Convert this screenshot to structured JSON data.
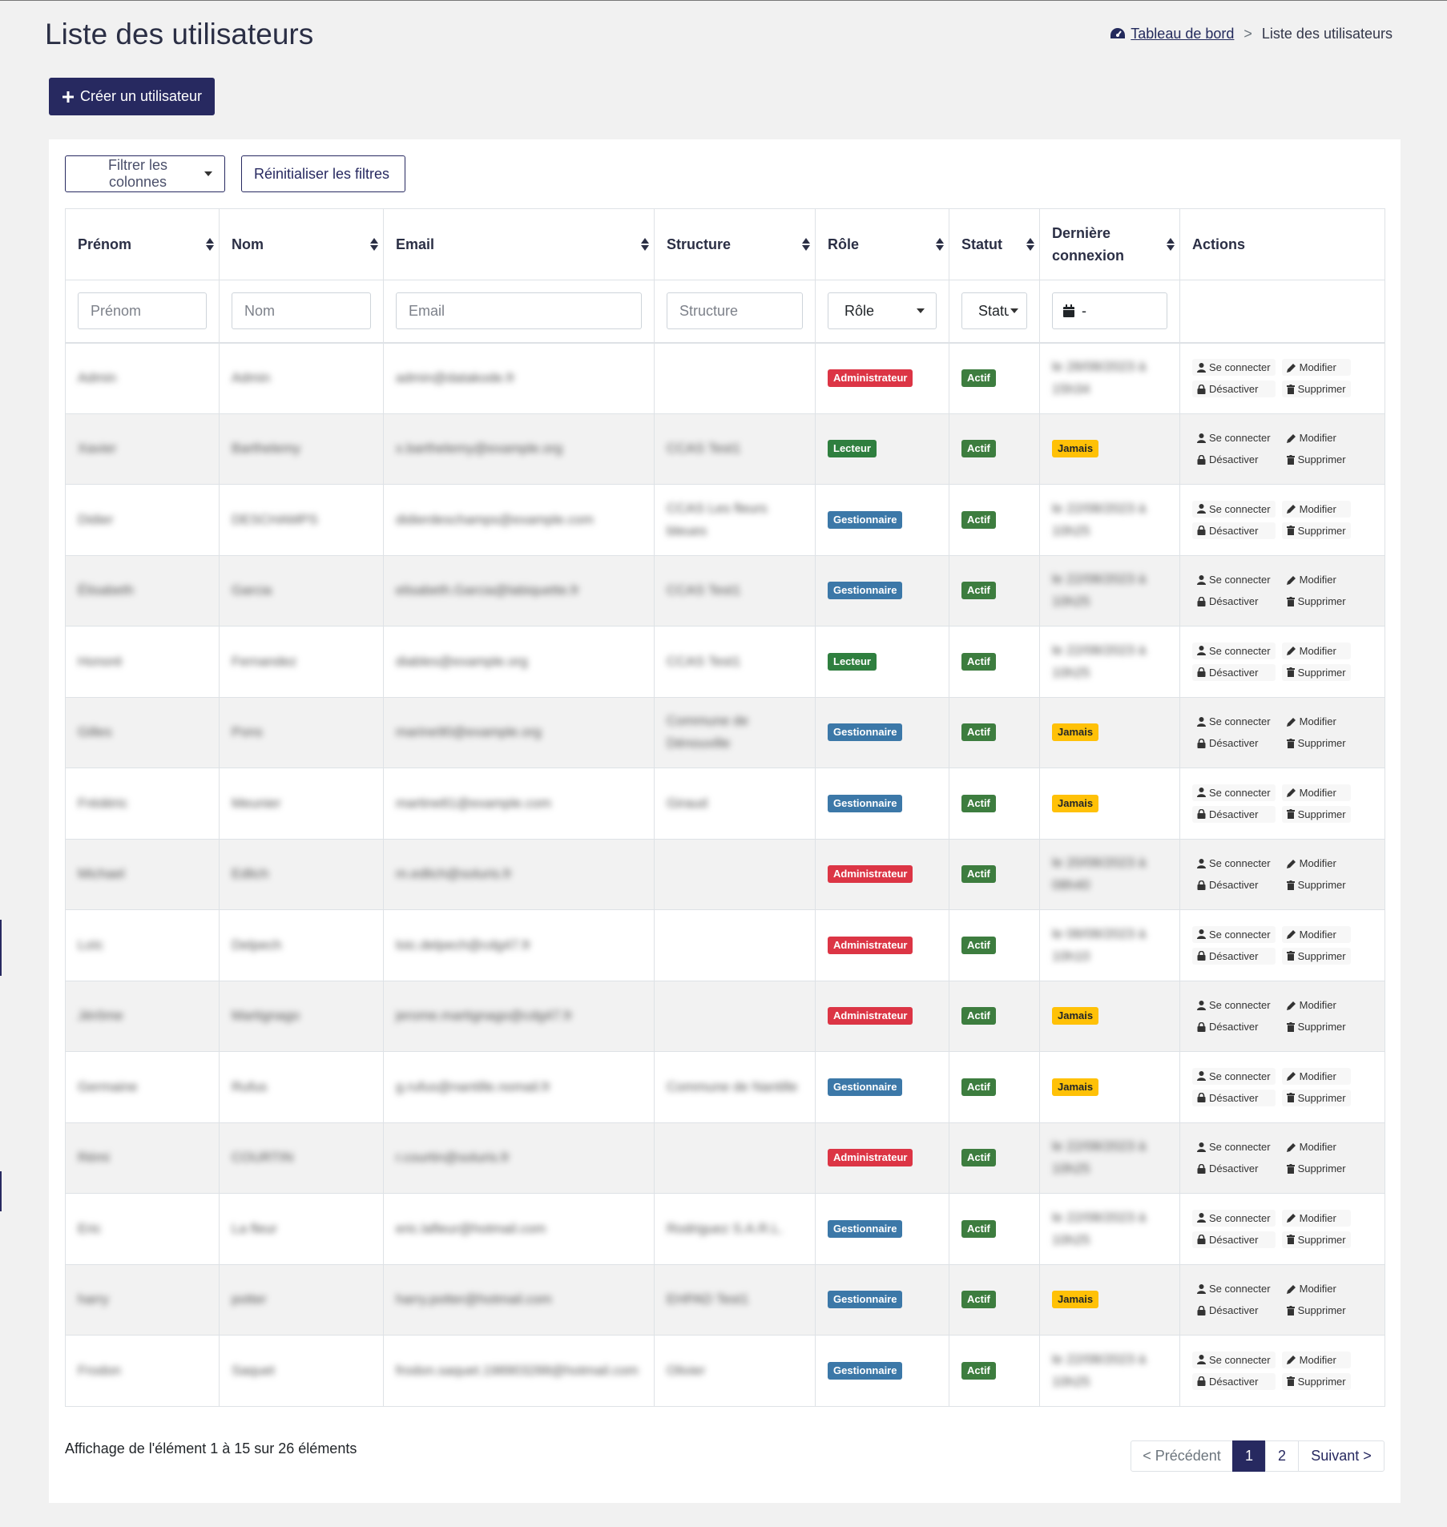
{
  "header": {
    "title": "Liste des utilisateurs",
    "breadcrumb": {
      "home": "Tableau de bord",
      "separator": ">",
      "current": "Liste des utilisateurs"
    },
    "create_button": "Créer un utilisateur"
  },
  "toolbar": {
    "filter_columns": "Filtrer les colonnes",
    "reset_filters": "Réinitialiser les filtres"
  },
  "table": {
    "headers": {
      "prenom": "Prénom",
      "nom": "Nom",
      "email": "Email",
      "structure": "Structure",
      "role": "Rôle",
      "statut": "Statut",
      "derniere_connexion": "Dernière connexion",
      "actions": "Actions"
    },
    "filters": {
      "prenom_placeholder": "Prénom",
      "nom_placeholder": "Nom",
      "email_placeholder": "Email",
      "structure_placeholder": "Structure",
      "role_select": "Rôle",
      "statut_select": "Statut",
      "date_range": "-"
    },
    "action_labels": {
      "login": "Se connecter",
      "edit": "Modifier",
      "deactivate": "Désactiver",
      "delete": "Supprimer"
    },
    "rows": [
      {
        "prenom": "Admin",
        "nom": "Admin",
        "email": "admin@datakode.fr",
        "structure": "",
        "role": "Administrateur",
        "role_type": "admin",
        "statut": "Actif",
        "last_login": "le 28/08/2023 à 15h34",
        "never": false
      },
      {
        "prenom": "Xavier",
        "nom": "Barthelemy",
        "email": "x.barthelemy@example.org",
        "structure": "CCAS Test1",
        "role": "Lecteur",
        "role_type": "lecteur",
        "statut": "Actif",
        "last_login": "Jamais",
        "never": true
      },
      {
        "prenom": "Didier",
        "nom": "DESCHAMPS",
        "email": "didierdeschamps@example.com",
        "structure": "CCAS Les fleurs bleues",
        "role": "Gestionnaire",
        "role_type": "gest",
        "statut": "Actif",
        "last_login": "le 22/08/2023 à 10h25",
        "never": false
      },
      {
        "prenom": "Élisabeth",
        "nom": "Garcia",
        "email": "elisabeth.Garcia@labiquette.fr",
        "structure": "CCAS Test1",
        "role": "Gestionnaire",
        "role_type": "gest",
        "statut": "Actif",
        "last_login": "le 22/08/2023 à 10h25",
        "never": false
      },
      {
        "prenom": "Honoré",
        "nom": "Fernandez",
        "email": "diables@example.org",
        "structure": "CCAS Test1",
        "role": "Lecteur",
        "role_type": "lecteur",
        "statut": "Actif",
        "last_login": "le 22/08/2023 à 10h25",
        "never": false
      },
      {
        "prenom": "Gilles",
        "nom": "Pons",
        "email": "marine90@example.org",
        "structure": "Commune de Dénouville",
        "role": "Gestionnaire",
        "role_type": "gest",
        "statut": "Actif",
        "last_login": "Jamais",
        "never": true
      },
      {
        "prenom": "Frédéric",
        "nom": "Meunier",
        "email": "martine81@example.com",
        "structure": "Giraud",
        "role": "Gestionnaire",
        "role_type": "gest",
        "statut": "Actif",
        "last_login": "Jamais",
        "never": true
      },
      {
        "prenom": "Michael",
        "nom": "Edlich",
        "email": "m.edlich@soluris.fr",
        "structure": "",
        "role": "Administrateur",
        "role_type": "admin",
        "statut": "Actif",
        "last_login": "le 20/08/2023 à 08h40",
        "never": false
      },
      {
        "prenom": "Loïc",
        "nom": "Delpech",
        "email": "loic.delpech@cdg47.fr",
        "structure": "",
        "role": "Administrateur",
        "role_type": "admin",
        "statut": "Actif",
        "last_login": "le 08/08/2023 à 10h10",
        "never": false
      },
      {
        "prenom": "Jérôme",
        "nom": "Martignago",
        "email": "jerome.martignago@cdg47.fr",
        "structure": "",
        "role": "Administrateur",
        "role_type": "admin",
        "statut": "Actif",
        "last_login": "Jamais",
        "never": true
      },
      {
        "prenom": "Germaine",
        "nom": "Rufus",
        "email": "g.rufus@nantille.nomail.fr",
        "structure": "Commune de Nantille",
        "role": "Gestionnaire",
        "role_type": "gest",
        "statut": "Actif",
        "last_login": "Jamais",
        "never": true
      },
      {
        "prenom": "Rémi",
        "nom": "COURTIN",
        "email": "r.courtin@soluris.fr",
        "structure": "",
        "role": "Administrateur",
        "role_type": "admin",
        "statut": "Actif",
        "last_login": "le 22/08/2023 à 10h25",
        "never": false
      },
      {
        "prenom": "Eric",
        "nom": "La fleur",
        "email": "eric.lafleur@hotmail.com",
        "structure": "Rodriguez S.A.R.L.",
        "role": "Gestionnaire",
        "role_type": "gest",
        "statut": "Actif",
        "last_login": "le 22/08/2023 à 10h25",
        "never": false
      },
      {
        "prenom": "harry",
        "nom": "potter",
        "email": "harry.potter@hotmail.com",
        "structure": "EHPAD Test1",
        "role": "Gestionnaire",
        "role_type": "gest",
        "statut": "Actif",
        "last_login": "Jamais",
        "never": true
      },
      {
        "prenom": "Frodon",
        "nom": "Saquet",
        "email": "frodon.saquet.198903288@hotmail.com",
        "structure": "Olivier",
        "role": "Gestionnaire",
        "role_type": "gest",
        "statut": "Actif",
        "last_login": "le 22/08/2023 à 10h25",
        "never": false
      }
    ]
  },
  "footer": {
    "info": "Affichage de l'élément 1 à 15 sur 26 éléments",
    "pagination": {
      "prev": "< Précédent",
      "pages": [
        "1",
        "2"
      ],
      "active_page": "1",
      "next": "Suivant >"
    }
  },
  "icons": {
    "breadcrumb_home": "dashboard-gauge-icon",
    "create": "plus-icon",
    "date": "calendar-icon",
    "login": "user-icon",
    "edit": "pencil-icon",
    "deactivate": "lock-icon",
    "delete": "trash-icon"
  },
  "colors": {
    "primary": "#272960",
    "admin": "#dc3545",
    "lecteur": "#2f7f3f",
    "gestionnaire": "#3c78a8",
    "actif": "#3d7d3f",
    "jamais": "#ffc107"
  }
}
